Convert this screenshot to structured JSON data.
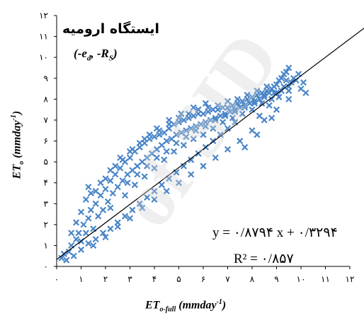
{
  "chart_data": {
    "type": "scatter",
    "title": "ایستگاه ارومیه",
    "subtitle": "(-e_d, -R_S)",
    "xlabel": "ET_o-full (mmday^-1)",
    "ylabel": "ET_o (mmday^-1)",
    "xlim": [
      0,
      12
    ],
    "ylim": [
      0,
      12
    ],
    "x_ticks": [
      0,
      1,
      2,
      3,
      4,
      5,
      6,
      7,
      8,
      9,
      10,
      11,
      12
    ],
    "y_ticks": [
      0,
      1,
      2,
      3,
      4,
      5,
      6,
      7,
      8,
      9,
      10,
      11,
      12
    ],
    "x_tick_labels": [
      "۰",
      "۱",
      "۲",
      "۳",
      "۴",
      "۵",
      "۶",
      "۷",
      "۸",
      "۹",
      "۱۰",
      "۱۱",
      "۱۲"
    ],
    "y_tick_labels": [
      "۰",
      "۱",
      "۲",
      "۳",
      "۴",
      "۵",
      "۶",
      "۷",
      "۸",
      "۹",
      "۱۰",
      "۱۱",
      "۱۲"
    ],
    "series": [
      {
        "marker": "x",
        "color": "#4a86c8",
        "points": [
          [
            0.2,
            0.4
          ],
          [
            0.3,
            0.6
          ],
          [
            0.5,
            0.7
          ],
          [
            0.6,
            1.0
          ],
          [
            0.8,
            1.3
          ],
          [
            0.9,
            1.6
          ],
          [
            1.0,
            1.2
          ],
          [
            1.1,
            2.0
          ],
          [
            1.2,
            1.6
          ],
          [
            1.3,
            2.3
          ],
          [
            1.4,
            2.7
          ],
          [
            1.5,
            1.8
          ],
          [
            1.6,
            3.0
          ],
          [
            1.7,
            2.4
          ],
          [
            1.8,
            3.4
          ],
          [
            1.9,
            2.7
          ],
          [
            2.0,
            3.7
          ],
          [
            2.1,
            3.1
          ],
          [
            2.2,
            4.1
          ],
          [
            2.3,
            3.5
          ],
          [
            2.4,
            4.4
          ],
          [
            2.5,
            3.8
          ],
          [
            2.6,
            4.7
          ],
          [
            2.7,
            4.1
          ],
          [
            2.8,
            5.0
          ],
          [
            2.9,
            4.4
          ],
          [
            3.0,
            5.2
          ],
          [
            3.1,
            4.6
          ],
          [
            3.2,
            5.5
          ],
          [
            3.3,
            4.8
          ],
          [
            3.4,
            5.7
          ],
          [
            3.5,
            5.0
          ],
          [
            3.6,
            5.9
          ],
          [
            3.7,
            5.2
          ],
          [
            3.8,
            6.1
          ],
          [
            3.9,
            5.4
          ],
          [
            4.0,
            6.2
          ],
          [
            4.1,
            5.6
          ],
          [
            4.2,
            6.3
          ],
          [
            4.3,
            5.8
          ],
          [
            4.4,
            6.4
          ],
          [
            4.5,
            6.0
          ],
          [
            4.6,
            6.6
          ],
          [
            4.7,
            6.1
          ],
          [
            4.8,
            6.8
          ],
          [
            4.9,
            6.3
          ],
          [
            5.0,
            6.9
          ],
          [
            5.1,
            6.4
          ],
          [
            5.2,
            7.0
          ],
          [
            5.3,
            6.5
          ],
          [
            5.4,
            7.1
          ],
          [
            5.5,
            6.6
          ],
          [
            5.6,
            7.2
          ],
          [
            5.7,
            6.7
          ],
          [
            5.8,
            7.3
          ],
          [
            5.9,
            6.8
          ],
          [
            6.0,
            7.3
          ],
          [
            6.1,
            6.9
          ],
          [
            6.2,
            7.4
          ],
          [
            6.3,
            7.0
          ],
          [
            6.4,
            7.5
          ],
          [
            6.5,
            7.1
          ],
          [
            6.6,
            7.5
          ],
          [
            6.7,
            7.2
          ],
          [
            6.8,
            7.6
          ],
          [
            6.9,
            7.3
          ],
          [
            7.0,
            7.6
          ],
          [
            7.1,
            7.4
          ],
          [
            7.2,
            7.7
          ],
          [
            7.3,
            7.5
          ],
          [
            7.4,
            7.8
          ],
          [
            7.5,
            7.6
          ],
          [
            7.6,
            7.9
          ],
          [
            7.7,
            7.7
          ],
          [
            7.8,
            8.0
          ],
          [
            7.9,
            7.8
          ],
          [
            8.0,
            8.1
          ],
          [
            8.1,
            7.9
          ],
          [
            8.2,
            8.2
          ],
          [
            8.3,
            8.0
          ],
          [
            8.4,
            8.3
          ],
          [
            8.5,
            8.2
          ],
          [
            8.6,
            8.4
          ],
          [
            8.7,
            8.3
          ],
          [
            8.8,
            8.5
          ],
          [
            8.9,
            8.6
          ],
          [
            9.0,
            8.7
          ],
          [
            9.1,
            8.9
          ],
          [
            9.2,
            9.0
          ],
          [
            9.3,
            9.2
          ],
          [
            9.4,
            9.3
          ],
          [
            9.5,
            9.5
          ],
          [
            9.6,
            8.8
          ],
          [
            9.8,
            8.9
          ],
          [
            10.0,
            8.5
          ],
          [
            10.2,
            8.3
          ],
          [
            9.5,
            8.4
          ],
          [
            9.0,
            8.3
          ],
          [
            9.4,
            8.9
          ],
          [
            9.7,
            9.0
          ],
          [
            1.2,
            3.2
          ],
          [
            1.6,
            3.6
          ],
          [
            2.0,
            4.2
          ],
          [
            2.4,
            4.8
          ],
          [
            2.6,
            5.2
          ],
          [
            3.0,
            5.5
          ],
          [
            3.4,
            5.9
          ],
          [
            3.8,
            6.3
          ],
          [
            4.2,
            6.5
          ],
          [
            4.6,
            6.8
          ],
          [
            5.0,
            7.1
          ],
          [
            5.4,
            7.3
          ],
          [
            5.8,
            7.5
          ],
          [
            6.2,
            7.6
          ],
          [
            6.6,
            7.7
          ],
          [
            7.0,
            7.9
          ],
          [
            7.4,
            8.0
          ],
          [
            7.8,
            8.2
          ],
          [
            8.2,
            8.4
          ],
          [
            8.6,
            8.6
          ],
          [
            1.5,
            1.0
          ],
          [
            2.0,
            1.4
          ],
          [
            2.5,
            1.9
          ],
          [
            3.0,
            2.3
          ],
          [
            3.5,
            2.8
          ],
          [
            4.0,
            3.2
          ],
          [
            4.5,
            3.6
          ],
          [
            5.0,
            4.0
          ],
          [
            5.5,
            4.4
          ],
          [
            6.0,
            4.8
          ],
          [
            6.5,
            5.2
          ],
          [
            7.0,
            5.6
          ],
          [
            7.5,
            6.0
          ],
          [
            8.0,
            6.5
          ],
          [
            8.5,
            7.0
          ],
          [
            9.0,
            7.5
          ],
          [
            9.5,
            8.0
          ],
          [
            7.7,
            5.7
          ],
          [
            8.2,
            6.3
          ],
          [
            8.8,
            7.1
          ],
          [
            2.2,
            2.8
          ],
          [
            2.8,
            3.4
          ],
          [
            3.2,
            3.9
          ],
          [
            3.6,
            4.3
          ],
          [
            4.0,
            4.7
          ],
          [
            4.4,
            5.1
          ],
          [
            4.8,
            5.5
          ],
          [
            5.2,
            5.8
          ],
          [
            5.6,
            6.1
          ],
          [
            6.0,
            6.3
          ],
          [
            6.4,
            6.6
          ],
          [
            6.8,
            6.9
          ],
          [
            7.2,
            7.1
          ],
          [
            7.6,
            7.3
          ],
          [
            8.0,
            7.5
          ],
          [
            8.4,
            7.8
          ],
          [
            8.8,
            8.0
          ],
          [
            9.2,
            8.4
          ],
          [
            0.4,
            0.3
          ],
          [
            0.7,
            0.5
          ],
          [
            1.0,
            0.8
          ],
          [
            1.3,
            1.1
          ],
          [
            1.6,
            1.3
          ],
          [
            1.9,
            1.6
          ],
          [
            2.2,
            1.8
          ],
          [
            2.5,
            2.1
          ],
          [
            2.8,
            2.4
          ],
          [
            3.1,
            2.7
          ],
          [
            3.4,
            3.0
          ],
          [
            3.7,
            3.3
          ],
          [
            4.0,
            3.6
          ],
          [
            4.3,
            3.9
          ],
          [
            4.6,
            4.2
          ],
          [
            4.9,
            4.5
          ],
          [
            5.2,
            4.8
          ],
          [
            5.5,
            5.1
          ],
          [
            5.8,
            5.4
          ],
          [
            6.1,
            5.7
          ],
          [
            6.4,
            6.0
          ],
          [
            6.7,
            6.3
          ],
          [
            7.0,
            6.6
          ],
          [
            7.3,
            6.9
          ],
          [
            0.6,
            1.6
          ],
          [
            0.8,
            2.1
          ],
          [
            1.0,
            2.6
          ],
          [
            1.4,
            3.5
          ],
          [
            1.8,
            4.0
          ],
          [
            2.2,
            4.6
          ],
          [
            2.7,
            5.1
          ],
          [
            3.1,
            5.6
          ],
          [
            3.6,
            6.1
          ],
          [
            4.1,
            6.6
          ],
          [
            4.6,
            7.0
          ],
          [
            5.1,
            7.3
          ],
          [
            5.6,
            7.6
          ],
          [
            6.1,
            7.8
          ],
          [
            8.3,
            7.2
          ],
          [
            8.7,
            7.7
          ],
          [
            9.1,
            8.1
          ],
          [
            9.5,
            8.6
          ],
          [
            1.3,
            3.8
          ],
          [
            2.9,
            4.0
          ],
          [
            3.3,
            4.4
          ],
          [
            3.7,
            4.8
          ],
          [
            4.1,
            5.2
          ],
          [
            4.5,
            5.5
          ],
          [
            4.9,
            5.9
          ],
          [
            5.3,
            6.2
          ],
          [
            5.7,
            6.5
          ],
          [
            6.1,
            6.7
          ],
          [
            6.5,
            7.0
          ],
          [
            6.9,
            7.2
          ],
          [
            7.3,
            7.4
          ],
          [
            7.7,
            7.6
          ],
          [
            8.1,
            7.8
          ],
          [
            8.5,
            8.1
          ],
          [
            8.9,
            8.3
          ],
          [
            9.3,
            8.6
          ],
          [
            9.9,
            9.2
          ],
          [
            10.1,
            8.8
          ]
        ]
      }
    ],
    "fit_line": {
      "slope": 0.8794,
      "intercept": 0.3294,
      "color": "#000000"
    },
    "annotations": {
      "equation": "y = ۰/۸۷۹۴ x + ۰/۳۲۹۴",
      "r_squared": "R² = ۰/۸۵۷"
    },
    "grid": false,
    "legend": "none"
  },
  "watermark": "of SID"
}
